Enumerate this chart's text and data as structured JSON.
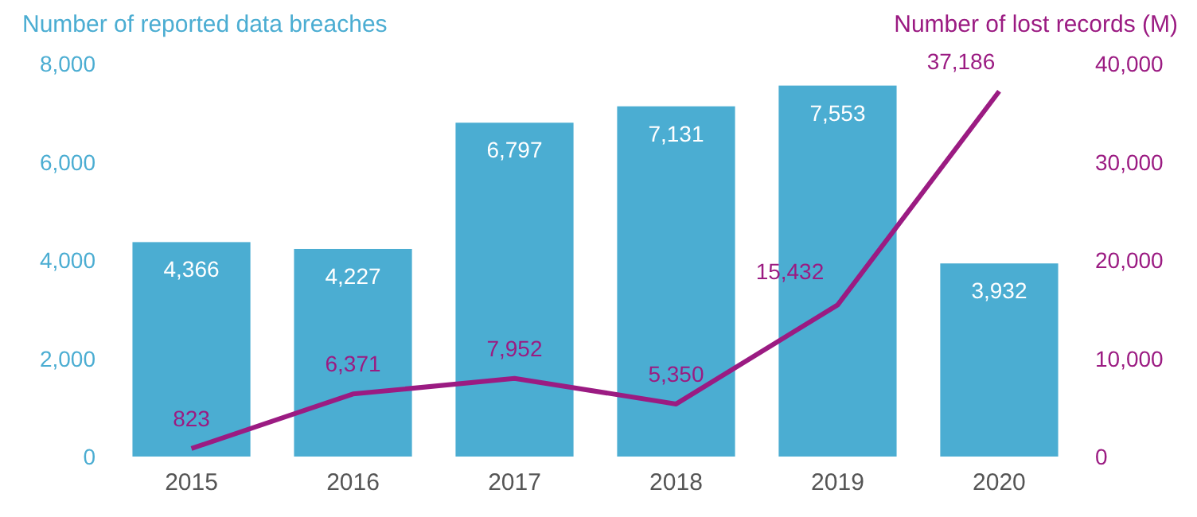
{
  "chart_data": {
    "type": "bar",
    "categories": [
      "2015",
      "2016",
      "2017",
      "2018",
      "2019",
      "2020"
    ],
    "ylabel": "Number of reported data breaches",
    "y2label": "Number of lost records (M)",
    "series": [
      {
        "color": "#4badd2",
        "values": [
          4366,
          4227,
          6797,
          7131,
          7553,
          3932
        ],
        "value_labels": [
          "4,366",
          "4,227",
          "6,797",
          "7,131",
          "7,553",
          "3,932"
        ]
      },
      {
        "type": "line",
        "axis": "y2",
        "color": "#9b1b82",
        "values": [
          823,
          6371,
          7952,
          5350,
          15432,
          37186
        ],
        "value_labels": [
          "823",
          "6,371",
          "7,952",
          "5,350",
          "15,432",
          "37,186"
        ]
      }
    ],
    "ylim": [
      0,
      8000
    ],
    "yticks": [
      0,
      {
        "value": 2000,
        "label": "2,000"
      },
      {
        "value": 4000,
        "label": "4,000"
      },
      {
        "value": 6000,
        "label": "6,000"
      },
      {
        "value": 8000,
        "label": "8,000"
      }
    ],
    "y2lim": [
      0,
      40000
    ],
    "y2ticks": [
      0,
      {
        "value": 10000,
        "label": "10,000"
      },
      {
        "value": 20000,
        "label": "20,000"
      },
      {
        "value": 30000,
        "label": "30,000"
      },
      {
        "value": 40000,
        "label": "40,000"
      }
    ],
    "grid": false,
    "marker": "none"
  }
}
